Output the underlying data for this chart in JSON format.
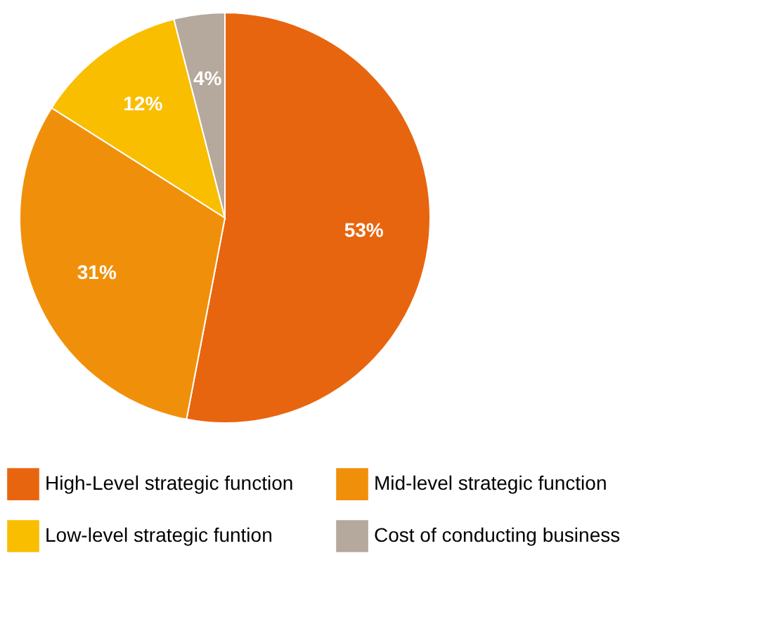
{
  "chart_data": {
    "type": "pie",
    "categories": [
      "High-Level strategic function",
      "Mid-level strategic function",
      "Low-level strategic funtion",
      "Cost of conducting business"
    ],
    "values": [
      53,
      31,
      12,
      4
    ],
    "colors": [
      "#e8650f",
      "#f0900a",
      "#f9be00",
      "#b5a89c"
    ],
    "value_labels": [
      "53%",
      "31%",
      "12%",
      "4%"
    ],
    "legend": "bottom"
  }
}
